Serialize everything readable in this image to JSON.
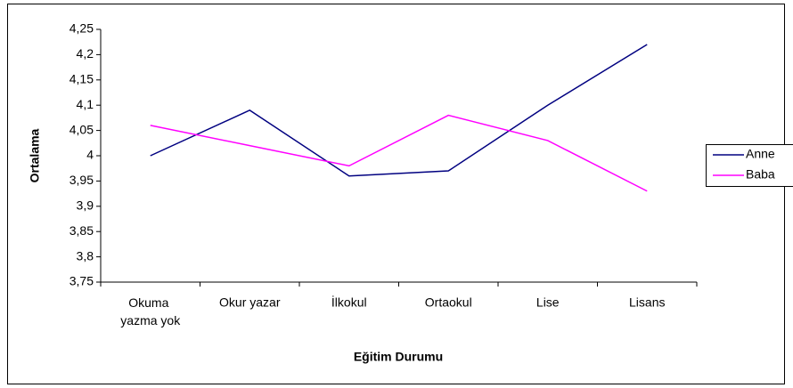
{
  "chart_data": {
    "type": "line",
    "xlabel": "Eğitim Durumu",
    "ylabel": "Ortalama",
    "categories": [
      "Okuma yazma yok",
      "Okur yazar",
      "İlkokul",
      "Ortaokul",
      "Lise",
      "Lisans"
    ],
    "series": [
      {
        "name": "Anne",
        "color": "#000080",
        "values": [
          4.0,
          4.09,
          3.96,
          3.97,
          4.1,
          4.22
        ]
      },
      {
        "name": "Baba",
        "color": "#ff00ff",
        "values": [
          4.06,
          4.02,
          3.98,
          4.08,
          4.03,
          3.93
        ]
      }
    ],
    "ylim": [
      3.75,
      4.25
    ],
    "yticks": [
      {
        "value": 3.75,
        "label": "3,75"
      },
      {
        "value": 3.8,
        "label": "3,8"
      },
      {
        "value": 3.85,
        "label": "3,85"
      },
      {
        "value": 3.9,
        "label": "3,9"
      },
      {
        "value": 3.95,
        "label": "3,95"
      },
      4,
      {
        "value": 4.05,
        "label": "4,05"
      },
      {
        "value": 4.1,
        "label": "4,1"
      },
      {
        "value": 4.15,
        "label": "4,15"
      },
      {
        "value": 4.2,
        "label": "4,2"
      },
      {
        "value": 4.25,
        "label": "4,25"
      }
    ],
    "grid": false,
    "legend": "right"
  }
}
